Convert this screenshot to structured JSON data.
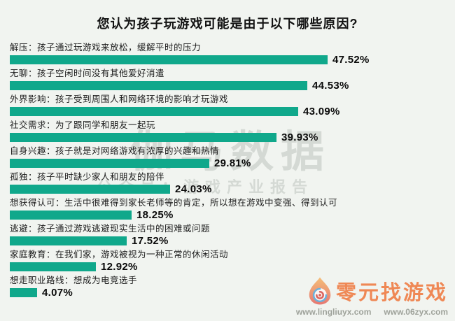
{
  "title": "您认为孩子玩游戏可能是由于以下哪些原因?",
  "chart_data": {
    "type": "bar",
    "orientation": "horizontal",
    "title": "您认为孩子玩游戏可能是由于以下哪些原因?",
    "categories": [
      "解压：孩子通过玩游戏来放松，缓解平时的压力",
      "无聊：孩子空闲时间没有其他爱好消遣",
      "外界影响：孩子受到周围人和网络环境的影响才玩游戏",
      "社交需求：为了跟同学和朋友一起玩",
      "自身兴趣：孩子就是对网络游戏有浓厚的兴趣和热情",
      "孤独：孩子平时缺少家人和朋友的陪伴",
      "想获得认可：生活中很难得到家长老师等的肯定，所以想在游戏中变强、得到认可",
      "逃避：孩子通过游戏逃避现实生活中的困难或问题",
      "家庭教育：在我们家，游戏被视为一种正常的休闲活动",
      "想走职业路线：想成为电竞选手"
    ],
    "values": [
      47.52,
      44.53,
      43.09,
      39.93,
      29.81,
      24.03,
      18.25,
      17.52,
      12.92,
      4.07
    ],
    "value_labels": [
      "47.52%",
      "44.53%",
      "43.09%",
      "39.93%",
      "29.81%",
      "24.03%",
      "18.25%",
      "17.52%",
      "12.92%",
      "4.07%"
    ],
    "bar_color": "#10a88b",
    "xlim": [
      0,
      50
    ],
    "grid": false,
    "legend": false
  },
  "watermark": {
    "line1": "伽马数据",
    "line2": "公众号：游戏产业报告"
  },
  "logo": {
    "name": "零元找游戏",
    "urls": [
      "www.lingliuyx.com",
      "www.06zyx.com"
    ],
    "accent_color": "#ef7a40"
  }
}
